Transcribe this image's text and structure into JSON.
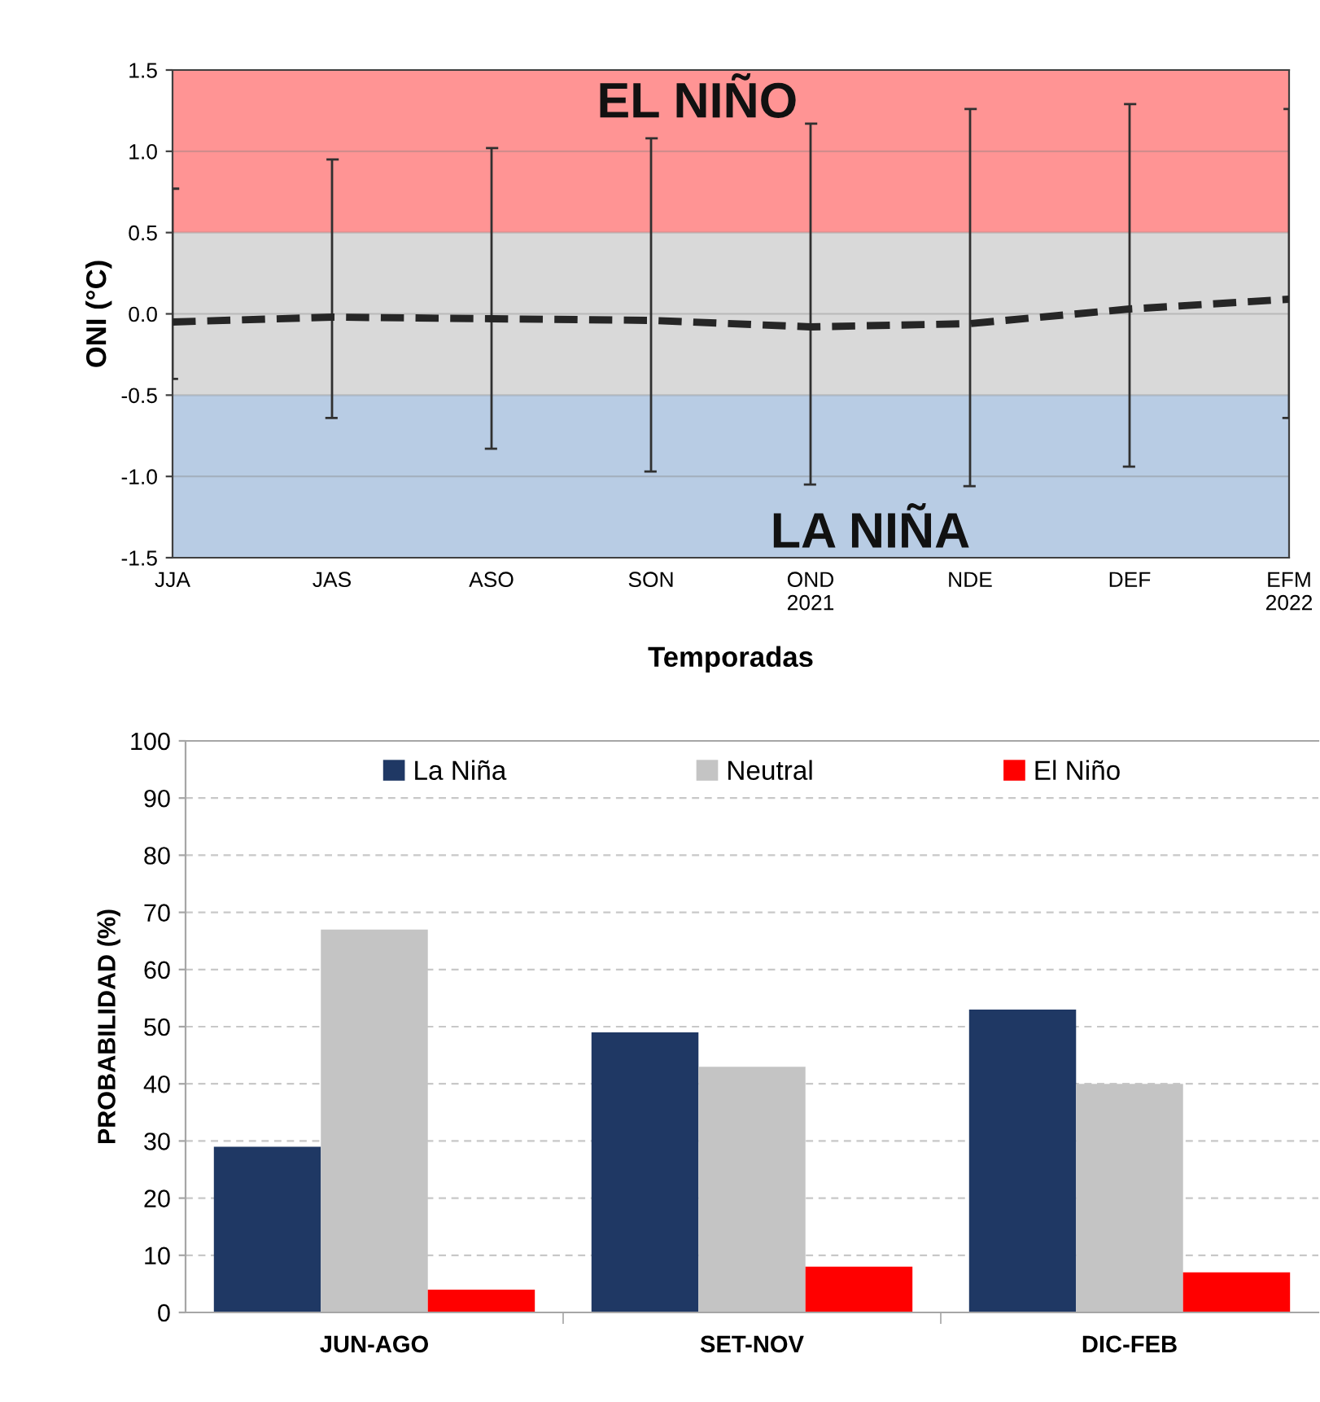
{
  "chart_data": [
    {
      "type": "line",
      "xlabel": "Temporadas",
      "ylabel": "ONI (°C)",
      "categories": [
        "JJA",
        "JAS",
        "ASO",
        "SON",
        "OND\n2021",
        "NDE",
        "DEF",
        "EFM\n2022"
      ],
      "series": [
        {
          "color": "#262626",
          "values": [
            -0.05,
            -0.02,
            -0.03,
            -0.04,
            -0.08,
            -0.06,
            0.03,
            0.09
          ],
          "errors": [
            [
              -0.4,
              0.77
            ],
            [
              -0.64,
              0.95
            ],
            [
              -0.83,
              1.02
            ],
            [
              -0.97,
              1.08
            ],
            [
              -1.05,
              1.17
            ],
            [
              -1.06,
              1.26
            ],
            [
              -0.94,
              1.29
            ],
            [
              -0.64,
              1.26
            ]
          ]
        }
      ],
      "line_style": "dashed",
      "ylim": [
        -1.5,
        1.5
      ],
      "yticks": [
        -1.5,
        {
          "value": -1,
          "label": "-1.0"
        },
        -0.5,
        {
          "value": 0,
          "label": "0.0"
        },
        0.5,
        {
          "value": 1,
          "label": "1.0"
        },
        1.5
      ],
      "grid": "y",
      "bands": [
        {
          "axis": "y",
          "from": 0.5,
          "to": 1.5,
          "label": "EL NIÑO",
          "color": "#ff9494"
        },
        {
          "axis": "y",
          "from": -0.5,
          "to": 0.5,
          "color": "#d9d9d9"
        },
        {
          "axis": "y",
          "from": -1.5,
          "to": -0.5,
          "label": "LA NIÑA",
          "color": "#b8cce4"
        }
      ]
    },
    {
      "type": "bar",
      "ylabel": "PROBABILIDAD (%)",
      "categories": [
        "JUN-AGO",
        "SET-NOV",
        "DIC-FEB"
      ],
      "series": [
        {
          "name": "La Niña",
          "color": "#1f3864",
          "values": [
            29,
            49,
            53
          ]
        },
        {
          "name": "Neutral",
          "color": "#c4c4c4",
          "values": [
            67,
            43,
            40
          ]
        },
        {
          "name": "El Niño",
          "color": "#ff0000",
          "values": [
            4,
            8,
            7
          ]
        }
      ],
      "ylim": [
        0,
        100
      ],
      "yticks": [
        0,
        10,
        20,
        30,
        40,
        50,
        60,
        70,
        80,
        90,
        100
      ],
      "grid": "y",
      "legend": "top"
    }
  ]
}
